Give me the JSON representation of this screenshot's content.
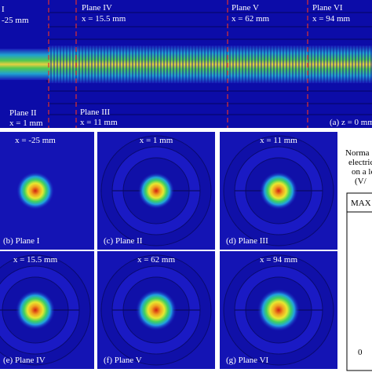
{
  "top_panel": {
    "plane_i": {
      "name": "I",
      "position": "-25 mm"
    },
    "plane_iv": {
      "name": "Plane IV",
      "position": "x = 15.5 mm"
    },
    "plane_v": {
      "name": "Plane V",
      "position": "x = 62 mm"
    },
    "plane_vi": {
      "name": "Plane VI",
      "position": "x = 94 mm"
    },
    "plane_ii": {
      "name": "Plane II",
      "position": "x = 1 mm"
    },
    "plane_iii": {
      "name": "Plane III",
      "position": "x = 11 mm"
    },
    "caption": "(a) z = 0 mm"
  },
  "panels": [
    {
      "position": "x = -25 mm",
      "label": "(b) Plane I"
    },
    {
      "position": "x = 1 mm",
      "label": "(c) Plane II"
    },
    {
      "position": "x = 11 mm",
      "label": "(d) Plane III"
    },
    {
      "position": "x = 15.5 mm",
      "label": "(e) Plane IV"
    },
    {
      "position": "x = 62 mm",
      "label": "(f) Plane V"
    },
    {
      "position": "x = 94 mm",
      "label": "(g) Plane VI"
    }
  ],
  "colorbar": {
    "title_lines": [
      "Norma",
      "electric",
      "on a lo",
      "(V/"
    ],
    "max": "MAX",
    "min": "0"
  }
}
